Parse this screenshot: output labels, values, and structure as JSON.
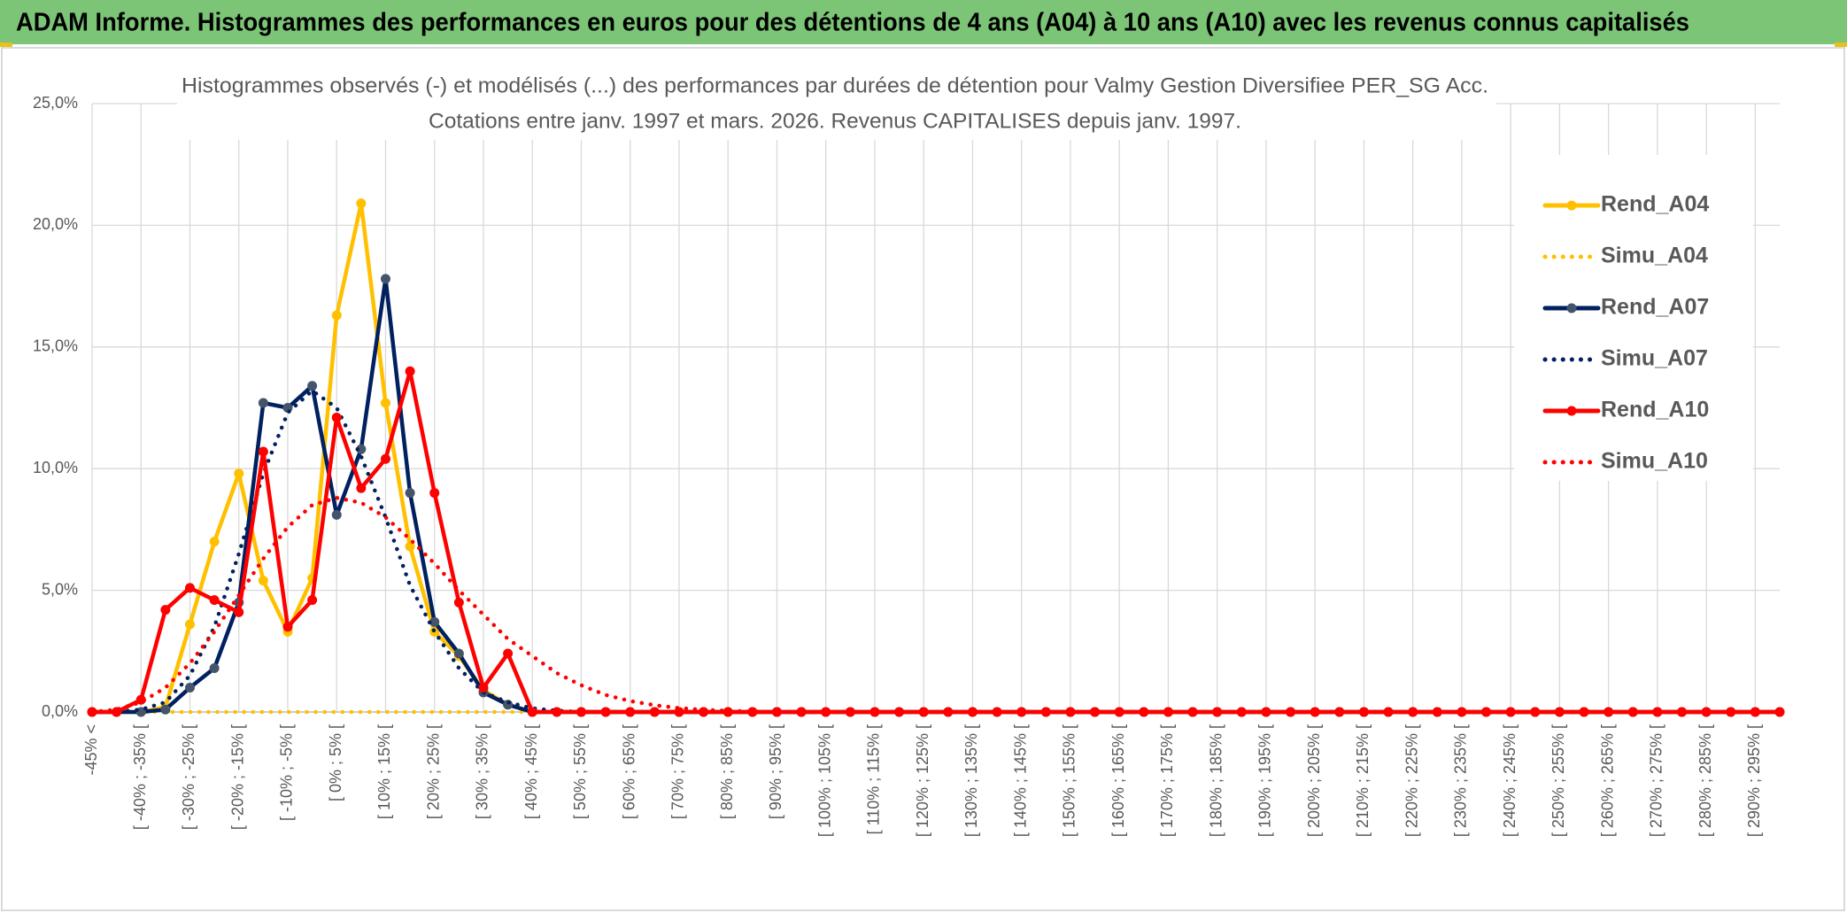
{
  "chart_data": {
    "type": "line",
    "title": "ADAM Informe. Histogrammes des performances en euros pour des détentions de 4 ans (A04) à 10 ans (A10) avec les revenus connus capitalisés",
    "subtitle": [
      "Histogrammes observés (-) et modélisés (...) des performances par durées de détention pour Valmy Gestion Diversifiee PER_SG Acc.",
      "Cotations entre janv. 1997 et mars. 2026. Revenus CAPITALISES depuis janv. 1997."
    ],
    "categories": [
      "-45% <",
      null,
      "[ -40% ; -35% [",
      null,
      "[ -30% ; -25% [",
      null,
      "[ -20% ; -15% [",
      null,
      "[ -10% ; -5% [",
      null,
      "[ 0% ; 5% [",
      null,
      "[ 10% ; 15% [",
      null,
      "[ 20% ; 25% [",
      null,
      "[ 30% ; 35% [",
      null,
      "[ 40% ; 45% [",
      null,
      "[ 50% ; 55% [",
      null,
      "[ 60% ; 65% [",
      null,
      "[ 70% ; 75% [",
      null,
      "[ 80% ; 85% [",
      null,
      "[ 90% ; 95% [",
      null,
      "[ 100% ; 105% [",
      null,
      "[ 110% ; 115% [",
      null,
      "[ 120% ; 125% [",
      null,
      "[ 130% ; 135% [",
      null,
      "[ 140% ; 145% [",
      null,
      "[ 150% ; 155% [",
      null,
      "[ 160% ; 165% [",
      null,
      "[ 170% ; 175% [",
      null,
      "[ 180% ; 185% [",
      null,
      "[ 190% ; 195% [",
      null,
      "[ 200% ; 205% [",
      null,
      "[ 210% ; 215% [",
      null,
      "[ 220% ; 225% [",
      null,
      "[ 230% ; 235% [",
      null,
      "[ 240% ; 245% [",
      null,
      "[ 250% ; 255% [",
      null,
      "[ 260% ; 265% [",
      null,
      "[ 270% ; 275% [",
      null,
      "[ 280% ; 285% [",
      null,
      "[ 290% ; 295% [",
      null
    ],
    "series": [
      {
        "name": "Rend_A04",
        "color": "#FFC000",
        "marker_color": "#FFC000",
        "style": "solid",
        "values": [
          0,
          0,
          0,
          0.2,
          3.6,
          7.0,
          9.8,
          5.4,
          3.3,
          5.5,
          16.3,
          20.9,
          12.7,
          6.8,
          3.3,
          2.3,
          0.9,
          0.3,
          0,
          0,
          0,
          0,
          0,
          0,
          0,
          0,
          0,
          0,
          0,
          0,
          0,
          0,
          0,
          0,
          0,
          0,
          0,
          0,
          0,
          0,
          0,
          0,
          0,
          0,
          0,
          0,
          0,
          0,
          0,
          0,
          0,
          0,
          0,
          0,
          0,
          0,
          0,
          0,
          0,
          0,
          0,
          0,
          0,
          0,
          0,
          0,
          0,
          0,
          0,
          0
        ]
      },
      {
        "name": "Simu_A04",
        "color": "#FFC000",
        "style": "dotted",
        "values": [
          0,
          0,
          0,
          0,
          0,
          0,
          0,
          0,
          0,
          0,
          0,
          0,
          0,
          0,
          0,
          0,
          0,
          0,
          0,
          0,
          0,
          0,
          0,
          0,
          0,
          0,
          0,
          0,
          0,
          0,
          0,
          0,
          0,
          0,
          0,
          0,
          0,
          0,
          0,
          0,
          0,
          0,
          0,
          0,
          0,
          0,
          0,
          0,
          0,
          0,
          0,
          0,
          0,
          0,
          0,
          0,
          0,
          0,
          0,
          0,
          0,
          0,
          0,
          0,
          0,
          0,
          0,
          0,
          0,
          0
        ]
      },
      {
        "name": "Rend_A07",
        "color": "#002060",
        "marker_color": "#44546A",
        "style": "solid",
        "values": [
          0,
          0,
          0,
          0.1,
          1.0,
          1.8,
          4.5,
          12.7,
          12.5,
          13.4,
          8.1,
          10.8,
          17.8,
          9.0,
          3.7,
          2.4,
          0.8,
          0.3,
          0,
          0,
          0,
          0,
          0,
          0,
          0,
          0,
          0,
          0,
          0,
          0,
          0,
          0,
          0,
          0,
          0,
          0,
          0,
          0,
          0,
          0,
          0,
          0,
          0,
          0,
          0,
          0,
          0,
          0,
          0,
          0,
          0,
          0,
          0,
          0,
          0,
          0,
          0,
          0,
          0,
          0,
          0,
          0,
          0,
          0,
          0,
          0,
          0,
          0,
          0,
          0
        ]
      },
      {
        "name": "Simu_A07",
        "color": "#002060",
        "style": "dotted",
        "values": [
          0,
          0,
          0.1,
          0.4,
          1.5,
          3.5,
          6.5,
          9.8,
          12.3,
          13.2,
          12.5,
          10.5,
          8.0,
          5.2,
          3.3,
          1.8,
          0.8,
          0.4,
          0.15,
          0.05,
          0,
          0,
          0,
          0,
          0,
          0,
          0,
          0,
          0,
          0,
          0,
          0,
          0,
          0,
          0,
          0,
          0,
          0,
          0,
          0,
          0,
          0,
          0,
          0,
          0,
          0,
          0,
          0,
          0,
          0,
          0,
          0,
          0,
          0,
          0,
          0,
          0,
          0,
          0,
          0,
          0,
          0,
          0,
          0,
          0,
          0,
          0,
          0,
          0,
          0
        ]
      },
      {
        "name": "Rend_A10",
        "color": "#FF0000",
        "marker_color": "#FF0000",
        "style": "solid",
        "values": [
          0,
          0,
          0.5,
          4.2,
          5.1,
          4.6,
          4.1,
          10.7,
          3.5,
          4.6,
          12.1,
          9.2,
          10.4,
          14.0,
          9.0,
          4.5,
          1.0,
          2.4,
          0,
          0,
          0,
          0,
          0,
          0,
          0,
          0,
          0,
          0,
          0,
          0,
          0,
          0,
          0,
          0,
          0,
          0,
          0,
          0,
          0,
          0,
          0,
          0,
          0,
          0,
          0,
          0,
          0,
          0,
          0,
          0,
          0,
          0,
          0,
          0,
          0,
          0,
          0,
          0,
          0,
          0,
          0,
          0,
          0,
          0,
          0,
          0,
          0,
          0,
          0,
          0
        ]
      },
      {
        "name": "Simu_A10",
        "color": "#FF0000",
        "style": "dotted",
        "values": [
          0,
          0.1,
          0.4,
          1.0,
          2.0,
          3.3,
          4.8,
          6.3,
          7.6,
          8.5,
          8.8,
          8.6,
          8.0,
          7.1,
          6.1,
          5.0,
          4.0,
          3.0,
          2.3,
          1.6,
          1.1,
          0.7,
          0.45,
          0.28,
          0.16,
          0.09,
          0.05,
          0.02,
          0,
          0,
          0,
          0,
          0,
          0,
          0,
          0,
          0,
          0,
          0,
          0,
          0,
          0,
          0,
          0,
          0,
          0,
          0,
          0,
          0,
          0,
          0,
          0,
          0,
          0,
          0,
          0,
          0,
          0,
          0,
          0,
          0,
          0,
          0,
          0,
          0,
          0,
          0,
          0,
          0,
          0
        ]
      }
    ],
    "ylim": [
      0,
      25
    ],
    "yticks": [
      {
        "value": 0,
        "label": "0,0%"
      },
      {
        "value": 5,
        "label": "5,0%"
      },
      {
        "value": 10,
        "label": "10,0%"
      },
      {
        "value": 15,
        "label": "15,0%"
      },
      {
        "value": 20,
        "label": "20,0%"
      },
      {
        "value": 25,
        "label": "25,0%"
      }
    ],
    "grid": true,
    "legend": "right"
  }
}
